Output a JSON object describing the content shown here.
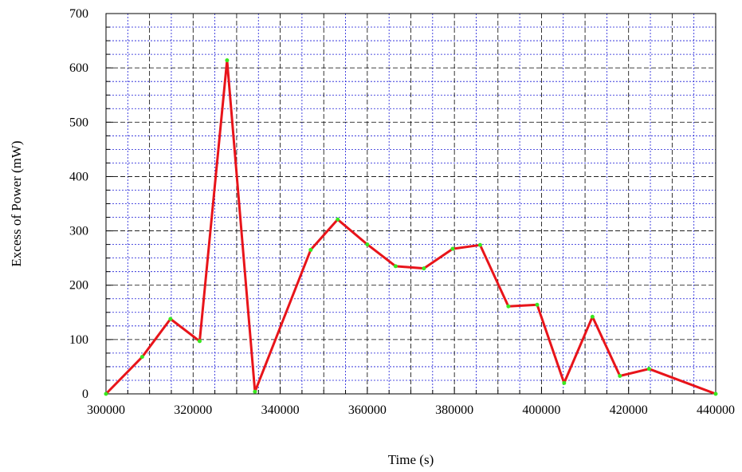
{
  "chart_data": {
    "type": "line",
    "title": "",
    "xlabel": "Time (s)",
    "ylabel": "Excess of Power (mW)",
    "xlim": [
      300000,
      440000
    ],
    "ylim": [
      0,
      700
    ],
    "x_ticks": [
      300000,
      320000,
      340000,
      360000,
      380000,
      400000,
      420000,
      440000
    ],
    "y_ticks": [
      0,
      100,
      200,
      300,
      400,
      500,
      600,
      700
    ],
    "major_grid_x": [
      310000,
      320000,
      330000,
      340000,
      350000,
      360000,
      370000,
      380000,
      390000,
      400000,
      410000,
      420000,
      430000
    ],
    "minor_grid_x": [
      305000,
      315000,
      325000,
      335000,
      345000,
      355000,
      365000,
      375000,
      385000,
      395000,
      405000,
      415000,
      425000,
      435000
    ],
    "major_grid_y": [
      100,
      200,
      300,
      400,
      500,
      600
    ],
    "minor_grid_y": [
      25,
      50,
      75,
      125,
      150,
      175,
      225,
      250,
      275,
      325,
      350,
      375,
      425,
      450,
      475,
      525,
      550,
      575,
      625,
      650,
      675
    ],
    "grid": true,
    "colors": {
      "line": "#e8141a",
      "marker": "#39e81f",
      "major_grid": "#000000",
      "minor_grid": "#1a1ad6"
    },
    "series": [
      {
        "x": [
          300000,
          308300,
          314800,
          321500,
          327800,
          334200,
          347000,
          353200,
          360000,
          366500,
          373000,
          379600,
          385900,
          392400,
          399000,
          405200,
          411700,
          418000,
          424700,
          440000
        ],
        "y": [
          0,
          68,
          138,
          97,
          614,
          4,
          265,
          321,
          275,
          235,
          231,
          267,
          274,
          161,
          164,
          20,
          142,
          33,
          46,
          0
        ]
      }
    ]
  }
}
